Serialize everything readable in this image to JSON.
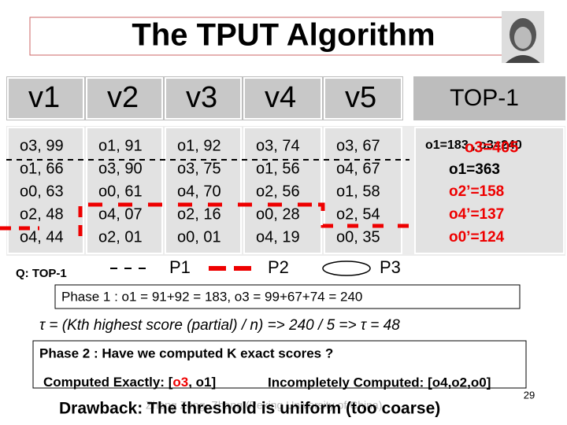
{
  "title": "The TPUT Algorithm",
  "table": {
    "headers": [
      "v1",
      "v2",
      "v3",
      "v4",
      "v5"
    ],
    "result_header": "TOP-1",
    "rows": [
      [
        "o3, 99",
        "o1, 91",
        "o1, 92",
        "o3, 74",
        "o3, 67"
      ],
      [
        "o1, 66",
        "o3, 90",
        "o3, 75",
        "o1, 56",
        "o4, 67"
      ],
      [
        "o0, 63",
        "o0, 61",
        "o4, 70",
        "o2, 56",
        "o1, 58"
      ],
      [
        "o2, 48",
        "o4, 07",
        "o2, 16",
        "o0, 28",
        "o2, 54"
      ],
      [
        "o4, 44",
        "o2, 01",
        "o0, 01",
        "o4, 19",
        "o0, 35"
      ]
    ]
  },
  "results": [
    "o1=183 , o3=240",
    "o3=405",
    "o1=363",
    "o2’=158",
    "o4’=137",
    "o0’=124"
  ],
  "legend": {
    "query": "Q: TOP-1",
    "p1": "P1",
    "p2": "P2",
    "p3": "P3"
  },
  "phase1": "Phase 1 : o1 = 91+92 = 183, o3 = 99+67+74 = 240",
  "threshold": "τ = (Kth highest score (partial) / n) => 240 / 5 => τ =  48",
  "phase2": "Phase 2 : Have we computed K exact scores ?",
  "computed_exactly": [
    "Computed Exactly: [",
    "o3",
    ", o1]"
  ],
  "incompletely_computed": "Incompletely Computed: [o4,o2,o0]",
  "page_number": "29",
  "footer": "Zheng Zeng, Zhang (Peking University of China)",
  "drawback": "Drawback: The threshold is uniform (too coarse)"
}
